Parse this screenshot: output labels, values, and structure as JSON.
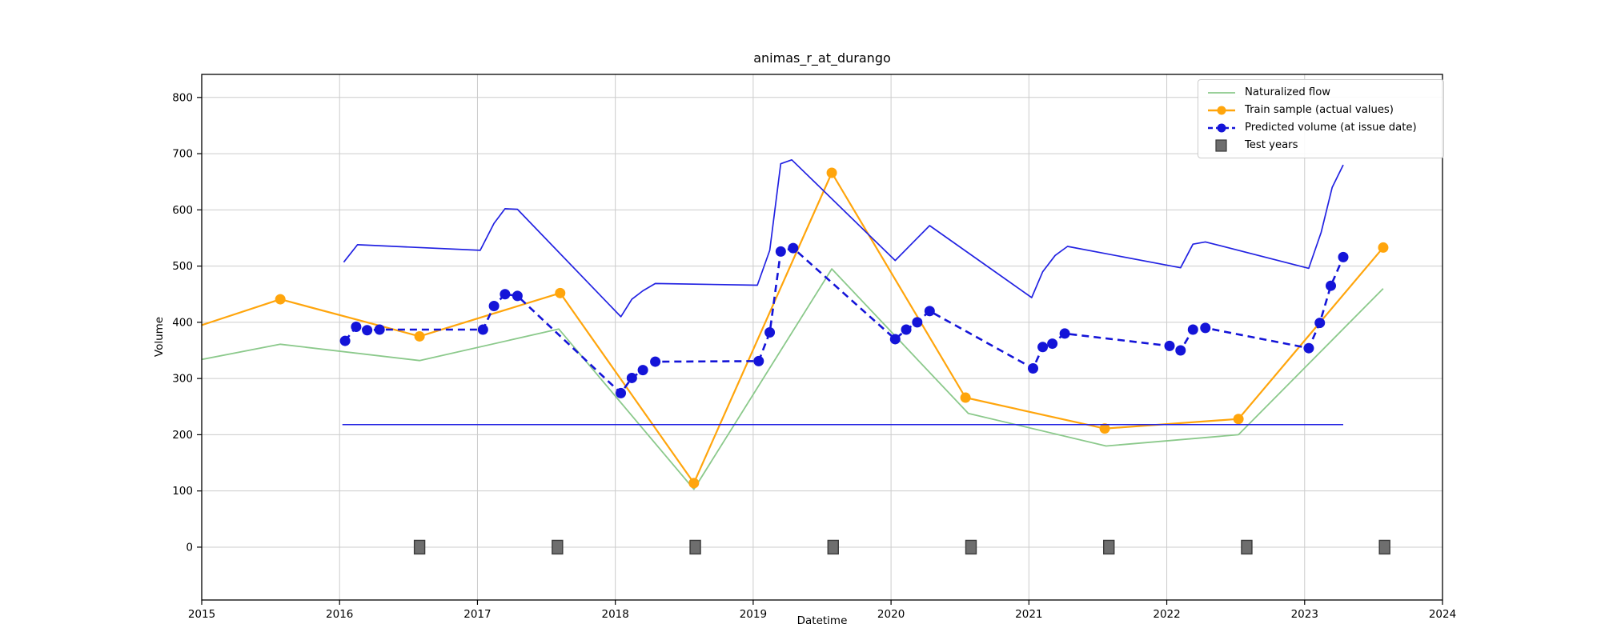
{
  "chart_data": {
    "type": "line",
    "title": "animas_r_at_durango",
    "xlabel": "Datetime",
    "ylabel": "Volume",
    "xlim": [
      2015,
      2024
    ],
    "ylim": [
      -94,
      841
    ],
    "xticks": [
      2015,
      2016,
      2017,
      2018,
      2019,
      2020,
      2021,
      2022,
      2023,
      2024
    ],
    "yticks": [
      0,
      100,
      200,
      300,
      400,
      500,
      600,
      700,
      800
    ],
    "grid": true,
    "legend_position": "upper right",
    "colors": {
      "grid": "#cccccc",
      "spine": "#000000",
      "naturalized": "#8bc98b",
      "train": "#ffa50c",
      "predicted": "#1414d8",
      "envelope": "#2222e2",
      "test_marker": "#6e6e6e",
      "test_marker_edge": "#3a3a3a"
    },
    "series": [
      {
        "id": "naturalized-flow",
        "label": "Naturalized flow",
        "color": "#8bc98b",
        "width": 1.8,
        "marker": "none",
        "x": [
          2015.0,
          2015.57,
          2016.58,
          2017.59,
          2018.57,
          2019.57,
          2020.56,
          2021.56,
          2022.52,
          2023.57
        ],
        "y": [
          334,
          361,
          332,
          388,
          103,
          495,
          238,
          180,
          200,
          460
        ]
      },
      {
        "id": "train-sample",
        "label": "Train sample (actual values)",
        "color": "#ffa50c",
        "width": 2.2,
        "marker": "circle",
        "marker_size": 6.5,
        "marker_from": 1,
        "x": [
          2015.0,
          2015.57,
          2016.58,
          2017.6,
          2018.57,
          2019.57,
          2020.54,
          2021.55,
          2022.52,
          2023.57
        ],
        "y": [
          395,
          441,
          375,
          452,
          114,
          666,
          266,
          211,
          228,
          533
        ]
      },
      {
        "id": "predicted-volume",
        "label": "Predicted volume (at issue date)",
        "color": "#1414d8",
        "width": 2.6,
        "dash": "9 6",
        "marker": "circle",
        "marker_size": 6.5,
        "x": [
          2016.04,
          2016.12,
          2016.2,
          2016.29,
          2017.04,
          2017.12,
          2017.2,
          2017.29,
          2018.04,
          2018.12,
          2018.2,
          2018.29,
          2019.04,
          2019.12,
          2019.2,
          2019.29,
          2020.03,
          2020.11,
          2020.19,
          2020.28,
          2021.03,
          2021.1,
          2021.17,
          2021.26,
          2022.02,
          2022.1,
          2022.19,
          2022.28,
          2023.03,
          2023.11,
          2023.19,
          2023.28
        ],
        "y": [
          367,
          392,
          386,
          387,
          387,
          429,
          450,
          447,
          274,
          301,
          315,
          330,
          331,
          382,
          526,
          532,
          370,
          387,
          400,
          420,
          318,
          356,
          362,
          380,
          358,
          350,
          387,
          390,
          354,
          399,
          465,
          516
        ]
      },
      {
        "id": "forecast-max",
        "label": "",
        "color": "#2222e2",
        "width": 1.7,
        "marker": "none",
        "x": [
          2016.03,
          2016.13,
          2017.02,
          2017.12,
          2017.2,
          2017.29,
          2018.04,
          2018.12,
          2018.2,
          2018.29,
          2019.03,
          2019.12,
          2019.2,
          2019.28,
          2020.03,
          2020.28,
          2021.02,
          2021.1,
          2021.19,
          2021.28,
          2022.1,
          2022.19,
          2022.28,
          2023.03,
          2023.12,
          2023.2,
          2023.28
        ],
        "y": [
          507,
          538,
          528,
          576,
          602,
          601,
          410,
          441,
          456,
          469,
          466,
          528,
          682,
          689,
          510,
          572,
          444,
          490,
          519,
          535,
          497,
          539,
          543,
          496,
          560,
          640,
          680
        ]
      },
      {
        "id": "forecast-min",
        "label": "",
        "color": "#2222e2",
        "width": 1.5,
        "marker": "none",
        "x": [
          2016.02,
          2023.28
        ],
        "y": [
          218,
          218
        ]
      }
    ],
    "test_years": {
      "label": "Test years",
      "x": [
        2016.58,
        2017.58,
        2018.58,
        2019.58,
        2020.58,
        2021.58,
        2022.58,
        2023.58
      ],
      "y": 0,
      "w": 13,
      "h": 17,
      "color": "#6e6e6e",
      "edge": "#3a3a3a"
    },
    "legend": {
      "entries": [
        {
          "label": "Naturalized flow",
          "swatch": "line",
          "color": "#8bc98b"
        },
        {
          "label": "Train sample (actual values)",
          "swatch": "line-marker",
          "color": "#ffa50c"
        },
        {
          "label": "Predicted volume (at issue date)",
          "swatch": "dash-marker",
          "dash": true,
          "color": "#1414d8"
        },
        {
          "label": "Test years",
          "swatch": "square",
          "color": "#6e6e6e",
          "edge": "#3a3a3a"
        }
      ]
    }
  }
}
